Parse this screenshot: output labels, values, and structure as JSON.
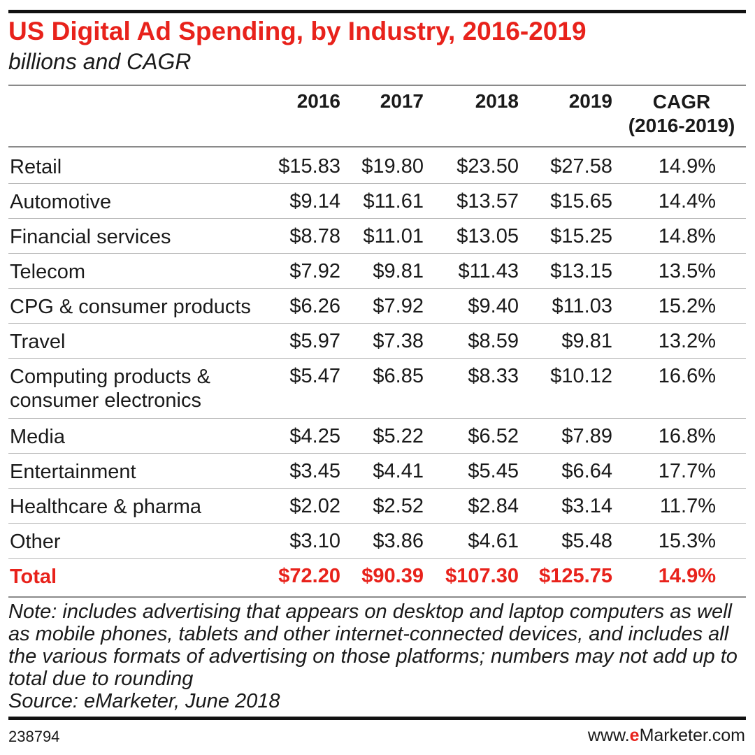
{
  "header": {
    "title": "US Digital Ad Spending, by Industry, 2016-2019",
    "subtitle": "billions and CAGR"
  },
  "colors": {
    "accent": "#e8221b",
    "text": "#1a1a1a",
    "rule": "#111111"
  },
  "chart_data": {
    "type": "table",
    "title": "US Digital Ad Spending, by Industry, 2016-2019",
    "subtitle": "billions and CAGR",
    "columns": [
      "2016",
      "2017",
      "2018",
      "2019",
      "CAGR",
      "(2016-2019)"
    ],
    "rows": [
      {
        "label": "Retail",
        "values": [
          "$15.83",
          "$19.80",
          "$23.50",
          "$27.58",
          "14.9%"
        ]
      },
      {
        "label": "Automotive",
        "values": [
          "$9.14",
          "$11.61",
          "$13.57",
          "$15.65",
          "14.4%"
        ]
      },
      {
        "label": "Financial services",
        "values": [
          "$8.78",
          "$11.01",
          "$13.05",
          "$15.25",
          "14.8%"
        ]
      },
      {
        "label": "Telecom",
        "values": [
          "$7.92",
          "$9.81",
          "$11.43",
          "$13.15",
          "13.5%"
        ]
      },
      {
        "label": "CPG & consumer products",
        "values": [
          "$6.26",
          "$7.92",
          "$9.40",
          "$11.03",
          "15.2%"
        ]
      },
      {
        "label": "Travel",
        "values": [
          "$5.97",
          "$7.38",
          "$8.59",
          "$9.81",
          "13.2%"
        ]
      },
      {
        "label": "Computing products & consumer electronics",
        "values": [
          "$5.47",
          "$6.85",
          "$8.33",
          "$10.12",
          "16.6%"
        ]
      },
      {
        "label": "Media",
        "values": [
          "$4.25",
          "$5.22",
          "$6.52",
          "$7.89",
          "16.8%"
        ]
      },
      {
        "label": "Entertainment",
        "values": [
          "$3.45",
          "$4.41",
          "$5.45",
          "$6.64",
          "17.7%"
        ]
      },
      {
        "label": "Healthcare & pharma",
        "values": [
          "$2.02",
          "$2.52",
          "$2.84",
          "$3.14",
          "11.7%"
        ]
      },
      {
        "label": "Other",
        "values": [
          "$3.10",
          "$3.86",
          "$4.61",
          "$5.48",
          "15.3%"
        ]
      }
    ],
    "total": {
      "label": "Total",
      "values": [
        "$72.20",
        "$90.39",
        "$107.30",
        "$125.75",
        "14.9%"
      ]
    }
  },
  "note": "Note: includes advertising that appears on desktop and laptop computers as well as mobile phones, tablets and other internet-connected devices, and includes all the various formats of advertising on those platforms; numbers may not add up to total due to rounding",
  "source": "Source: eMarketer, June 2018",
  "footer": {
    "chart_id": "238794",
    "brand_prefix": "www.",
    "brand_accent": "e",
    "brand_suffix": "Marketer.com"
  }
}
